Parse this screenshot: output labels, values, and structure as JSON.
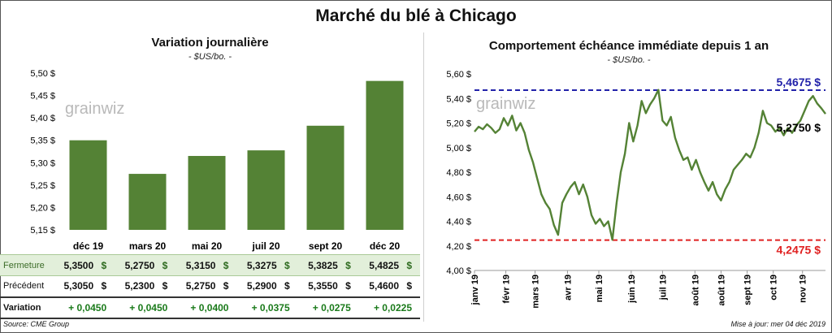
{
  "title": "Marché du blé à Chicago",
  "left_panel": {
    "title": "Variation journalière",
    "subtitle": "- $US/bo. -"
  },
  "right_panel": {
    "title": "Comportement échéance immédiate depuis 1 an",
    "subtitle": "- $US/bo. -"
  },
  "watermark": "grainwiz",
  "table": {
    "rows": [
      {
        "label": "Fermeture",
        "values": [
          "5,3500",
          "5,2750",
          "5,3150",
          "5,3275",
          "5,3825",
          "5,4825"
        ],
        "unit": "$"
      },
      {
        "label": "Précédent",
        "values": [
          "5,3050",
          "5,2300",
          "5,2750",
          "5,2900",
          "5,3550",
          "5,4600"
        ],
        "unit": "$"
      },
      {
        "label": "Variation",
        "values": [
          "+ 0,0450",
          "+ 0,0450",
          "+ 0,0400",
          "+ 0,0375",
          "+ 0,0275",
          "+ 0,0225"
        ]
      }
    ]
  },
  "footer": {
    "source": "Source: CME Group",
    "updated": "Mise à jour: mer 04 déc 2019"
  },
  "colors": {
    "bar": "#548235",
    "line": "#548235",
    "high_line": "#2222aa",
    "low_line": "#e02020"
  },
  "chart_data": [
    {
      "type": "bar",
      "categories": [
        "déc 19",
        "mars 20",
        "mai 20",
        "juil 20",
        "sept 20",
        "déc 20"
      ],
      "values": [
        5.35,
        5.275,
        5.315,
        5.3275,
        5.3825,
        5.4825
      ],
      "ylim": [
        5.15,
        5.5
      ],
      "yticks": [
        5.15,
        5.2,
        5.25,
        5.3,
        5.35,
        5.4,
        5.45,
        5.5
      ],
      "ytick_labels": [
        "5,15 $",
        "5,20 $",
        "5,25 $",
        "5,30 $",
        "5,35 $",
        "5,40 $",
        "5,45 $",
        "5,50 $"
      ],
      "grid": false
    },
    {
      "type": "line",
      "x_start": "2019-01-02",
      "x_end": "2019-12-04",
      "ylim": [
        4.0,
        5.6
      ],
      "yticks": [
        4.0,
        4.2,
        4.4,
        4.6,
        4.8,
        5.0,
        5.2,
        5.4,
        5.6
      ],
      "ytick_labels": [
        "4,00 $",
        "4,20 $",
        "4,40 $",
        "4,60 $",
        "4,80 $",
        "5,00 $",
        "5,20 $",
        "5,40 $",
        "5,60 $"
      ],
      "xtick_labels": [
        "janv 19",
        "févr 19",
        "mars 19",
        "avr 19",
        "mai 19",
        "juin 19",
        "juil 19",
        "août 19",
        "août 19",
        "sept 19",
        "oct 19",
        "nov 19"
      ],
      "xtick_dates": [
        "2019-01-02",
        "2019-02-01",
        "2019-03-01",
        "2019-04-01",
        "2019-05-01",
        "2019-06-01",
        "2019-07-01",
        "2019-08-01",
        "2019-08-26",
        "2019-09-20",
        "2019-10-15",
        "2019-11-12"
      ],
      "series": [
        {
          "values": [
            {
              "x": "2019-01-02",
              "y": 5.13
            },
            {
              "x": "2019-01-06",
              "y": 5.17
            },
            {
              "x": "2019-01-10",
              "y": 5.15
            },
            {
              "x": "2019-01-14",
              "y": 5.19
            },
            {
              "x": "2019-01-18",
              "y": 5.16
            },
            {
              "x": "2019-01-22",
              "y": 5.12
            },
            {
              "x": "2019-01-26",
              "y": 5.15
            },
            {
              "x": "2019-01-30",
              "y": 5.24
            },
            {
              "x": "2019-02-03",
              "y": 5.18
            },
            {
              "x": "2019-02-07",
              "y": 5.26
            },
            {
              "x": "2019-02-11",
              "y": 5.14
            },
            {
              "x": "2019-02-15",
              "y": 5.2
            },
            {
              "x": "2019-02-19",
              "y": 5.12
            },
            {
              "x": "2019-02-23",
              "y": 4.98
            },
            {
              "x": "2019-02-27",
              "y": 4.88
            },
            {
              "x": "2019-03-03",
              "y": 4.75
            },
            {
              "x": "2019-03-07",
              "y": 4.62
            },
            {
              "x": "2019-03-11",
              "y": 4.55
            },
            {
              "x": "2019-03-15",
              "y": 4.5
            },
            {
              "x": "2019-03-19",
              "y": 4.37
            },
            {
              "x": "2019-03-23",
              "y": 4.29
            },
            {
              "x": "2019-03-27",
              "y": 4.55
            },
            {
              "x": "2019-03-31",
              "y": 4.62
            },
            {
              "x": "2019-04-04",
              "y": 4.68
            },
            {
              "x": "2019-04-08",
              "y": 4.72
            },
            {
              "x": "2019-04-12",
              "y": 4.62
            },
            {
              "x": "2019-04-16",
              "y": 4.7
            },
            {
              "x": "2019-04-20",
              "y": 4.6
            },
            {
              "x": "2019-04-24",
              "y": 4.45
            },
            {
              "x": "2019-04-28",
              "y": 4.38
            },
            {
              "x": "2019-05-02",
              "y": 4.42
            },
            {
              "x": "2019-05-06",
              "y": 4.36
            },
            {
              "x": "2019-05-10",
              "y": 4.4
            },
            {
              "x": "2019-05-14",
              "y": 4.25
            },
            {
              "x": "2019-05-18",
              "y": 4.55
            },
            {
              "x": "2019-05-22",
              "y": 4.8
            },
            {
              "x": "2019-05-26",
              "y": 4.95
            },
            {
              "x": "2019-05-30",
              "y": 5.2
            },
            {
              "x": "2019-06-03",
              "y": 5.05
            },
            {
              "x": "2019-06-07",
              "y": 5.18
            },
            {
              "x": "2019-06-11",
              "y": 5.38
            },
            {
              "x": "2019-06-15",
              "y": 5.28
            },
            {
              "x": "2019-06-19",
              "y": 5.35
            },
            {
              "x": "2019-06-23",
              "y": 5.4
            },
            {
              "x": "2019-06-27",
              "y": 5.47
            },
            {
              "x": "2019-07-01",
              "y": 5.22
            },
            {
              "x": "2019-07-05",
              "y": 5.18
            },
            {
              "x": "2019-07-09",
              "y": 5.25
            },
            {
              "x": "2019-07-13",
              "y": 5.08
            },
            {
              "x": "2019-07-17",
              "y": 4.98
            },
            {
              "x": "2019-07-21",
              "y": 4.9
            },
            {
              "x": "2019-07-25",
              "y": 4.92
            },
            {
              "x": "2019-07-29",
              "y": 4.82
            },
            {
              "x": "2019-08-02",
              "y": 4.9
            },
            {
              "x": "2019-08-06",
              "y": 4.8
            },
            {
              "x": "2019-08-10",
              "y": 4.72
            },
            {
              "x": "2019-08-14",
              "y": 4.65
            },
            {
              "x": "2019-08-18",
              "y": 4.72
            },
            {
              "x": "2019-08-22",
              "y": 4.62
            },
            {
              "x": "2019-08-26",
              "y": 4.57
            },
            {
              "x": "2019-08-30",
              "y": 4.66
            },
            {
              "x": "2019-09-03",
              "y": 4.72
            },
            {
              "x": "2019-09-07",
              "y": 4.82
            },
            {
              "x": "2019-09-11",
              "y": 4.86
            },
            {
              "x": "2019-09-15",
              "y": 4.9
            },
            {
              "x": "2019-09-19",
              "y": 4.95
            },
            {
              "x": "2019-09-23",
              "y": 4.92
            },
            {
              "x": "2019-09-27",
              "y": 5.0
            },
            {
              "x": "2019-10-01",
              "y": 5.12
            },
            {
              "x": "2019-10-05",
              "y": 5.3
            },
            {
              "x": "2019-10-09",
              "y": 5.2
            },
            {
              "x": "2019-10-13",
              "y": 5.18
            },
            {
              "x": "2019-10-17",
              "y": 5.13
            },
            {
              "x": "2019-10-21",
              "y": 5.16
            },
            {
              "x": "2019-10-25",
              "y": 5.1
            },
            {
              "x": "2019-10-29",
              "y": 5.16
            },
            {
              "x": "2019-11-02",
              "y": 5.12
            },
            {
              "x": "2019-11-06",
              "y": 5.18
            },
            {
              "x": "2019-11-10",
              "y": 5.22
            },
            {
              "x": "2019-11-14",
              "y": 5.3
            },
            {
              "x": "2019-11-18",
              "y": 5.38
            },
            {
              "x": "2019-11-22",
              "y": 5.42
            },
            {
              "x": "2019-11-26",
              "y": 5.36
            },
            {
              "x": "2019-11-30",
              "y": 5.32
            },
            {
              "x": "2019-12-04",
              "y": 5.275
            }
          ]
        }
      ],
      "reference_lines": [
        {
          "label": "5,4675 $",
          "value": 5.4675,
          "color": "#2222aa",
          "style": "dashed"
        },
        {
          "label": "4,2475 $",
          "value": 4.2475,
          "color": "#e02020",
          "style": "dashed"
        }
      ],
      "last_value_label": "5,2750 $",
      "grid": false
    }
  ]
}
